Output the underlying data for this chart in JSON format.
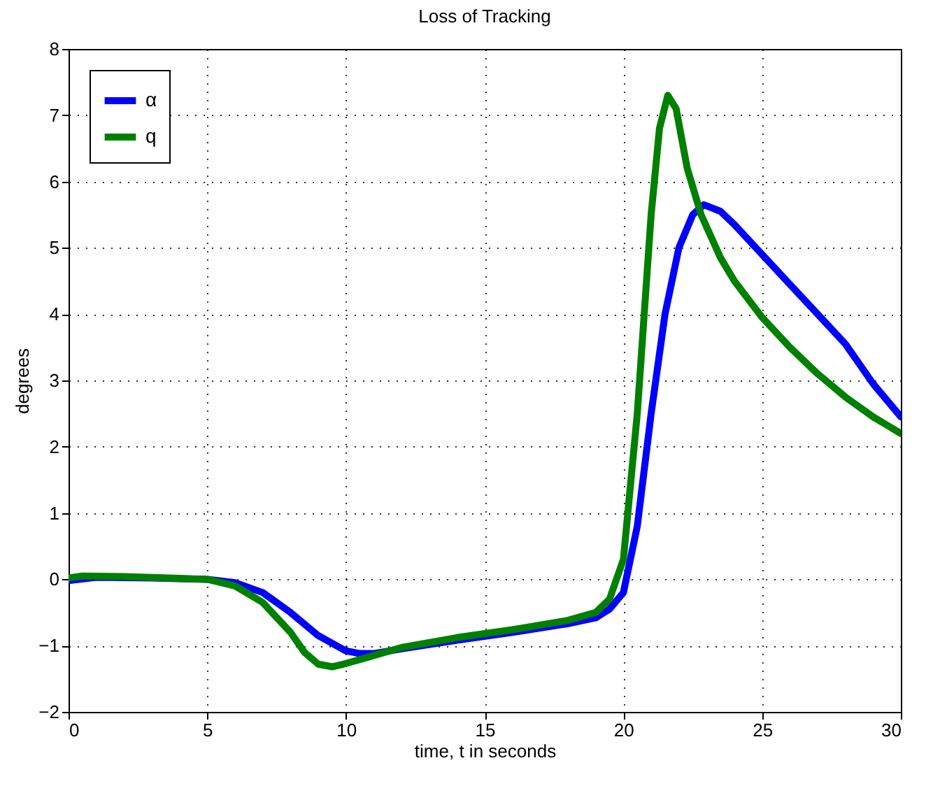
{
  "chart_data": {
    "type": "line",
    "title": "Loss of Tracking",
    "xlabel": "time, t in seconds",
    "ylabel": "degrees",
    "xlim": [
      0,
      30
    ],
    "xticks": [
      0,
      5,
      10,
      15,
      20,
      25,
      30
    ],
    "ylim": [
      -2,
      8
    ],
    "yticks": [
      -2,
      -1,
      0,
      1,
      2,
      3,
      4,
      5,
      6,
      7,
      8
    ],
    "grid": true,
    "legend": "top left",
    "line_style": "solid",
    "series": [
      {
        "name": "α",
        "color": "#0000ff",
        "x": [
          0,
          1,
          3,
          5,
          6,
          7,
          8,
          9,
          10,
          10.5,
          11,
          12,
          14,
          16,
          18,
          19,
          19.5,
          20,
          20.5,
          21,
          21.5,
          22,
          22.5,
          22.9,
          23.5,
          24,
          25,
          26,
          27,
          28,
          29,
          30
        ],
        "values": [
          -0.02,
          0.03,
          0.02,
          0,
          -0.05,
          -0.2,
          -0.5,
          -0.85,
          -1.08,
          -1.12,
          -1.12,
          -1.05,
          -0.92,
          -0.8,
          -0.67,
          -0.58,
          -0.45,
          -0.2,
          0.8,
          2.5,
          4.0,
          5.0,
          5.5,
          5.65,
          5.55,
          5.35,
          4.9,
          4.45,
          4.0,
          3.55,
          2.95,
          2.45
        ]
      },
      {
        "name": "q",
        "color": "#008000",
        "x": [
          0,
          0.5,
          2,
          5,
          6,
          7,
          8,
          8.5,
          9,
          9.5,
          10,
          11,
          12,
          14,
          16,
          18,
          19,
          19.5,
          20,
          20.5,
          21,
          21.3,
          21.6,
          21.9,
          22.3,
          22.8,
          23.5,
          24,
          25,
          26,
          27,
          28,
          29,
          30
        ],
        "values": [
          0.02,
          0.05,
          0.04,
          0,
          -0.1,
          -0.35,
          -0.8,
          -1.1,
          -1.28,
          -1.32,
          -1.27,
          -1.15,
          -1.03,
          -0.88,
          -0.76,
          -0.62,
          -0.5,
          -0.3,
          0.3,
          2.5,
          5.5,
          6.8,
          7.3,
          7.1,
          6.2,
          5.5,
          4.85,
          4.5,
          3.95,
          3.5,
          3.1,
          2.75,
          2.45,
          2.2
        ]
      }
    ]
  }
}
